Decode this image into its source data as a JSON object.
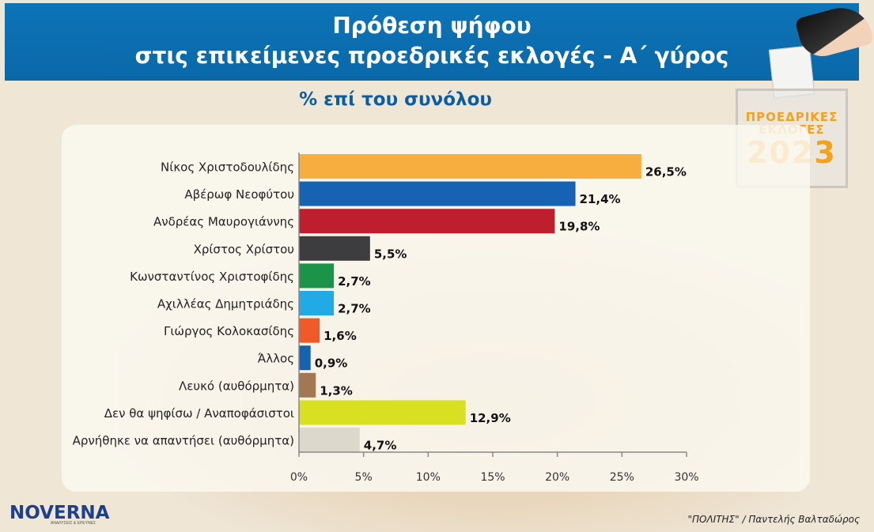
{
  "header": {
    "title_line1": "Πρόθεση ψήφου",
    "title_line2": "στις επικείμενες προεδρικές εκλογές - Α΄ γύρος",
    "subtitle": "% επί του συνόλου"
  },
  "badge": {
    "line1": "ΠΡΟΕΔΡΙΚΕΣ",
    "line2": "ΕΚΛΟΓΕΣ",
    "year": "2023"
  },
  "logo": {
    "text": "NOVERNA",
    "tagline": "ΑΝΑΛΥΣΕΙΣ & ΕΡΕΥΝΕΣ"
  },
  "footer": {
    "source": "\"ΠΟΛΙΤΗΣ\" / Παντελής Βαλταδώρος"
  },
  "chart_data": {
    "type": "bar",
    "orientation": "horizontal",
    "categories": [
      "Νίκος Χριστοδουλίδης",
      "Αβέρωφ Νεοφύτου",
      "Ανδρέας Μαυρογιάννης",
      "Χρίστος Χρίστου",
      "Κωνσταντίνος Χριστοφίδης",
      "Αχιλλέας Δημητριάδης",
      "Γιώργος Κολοκασίδης",
      "Άλλος",
      "Λευκό (αυθόρμητα)",
      "Δεν θα ψηφίσω / Αναποφάσιστοι",
      "Αρνήθηκε να απαντήσει (αυθόρμητα)"
    ],
    "values": [
      26.5,
      21.4,
      19.8,
      5.5,
      2.7,
      2.7,
      1.6,
      0.9,
      1.3,
      12.9,
      4.7
    ],
    "value_labels": [
      "26,5%",
      "21,4%",
      "19,8%",
      "5,5%",
      "2,7%",
      "2,7%",
      "1,6%",
      "0,9%",
      "1,3%",
      "12,9%",
      "4,7%"
    ],
    "colors": [
      "#f8ae3f",
      "#1762b2",
      "#be1e2d",
      "#3d3d40",
      "#1b9348",
      "#21aae6",
      "#f05a28",
      "#1462b0",
      "#a27752",
      "#d9e021",
      "#ddd8cc"
    ],
    "xlim": [
      0,
      30
    ],
    "xticks": [
      0,
      5,
      10,
      15,
      20,
      25,
      30
    ],
    "xtick_labels": [
      "0%",
      "5%",
      "10%",
      "15%",
      "20%",
      "25%",
      "30%"
    ],
    "grid": false,
    "title": "Πρόθεση ψήφου στις επικείμενες προεδρικές εκλογές - Α΄ γύρος",
    "subtitle": "% επί του συνόλου"
  }
}
